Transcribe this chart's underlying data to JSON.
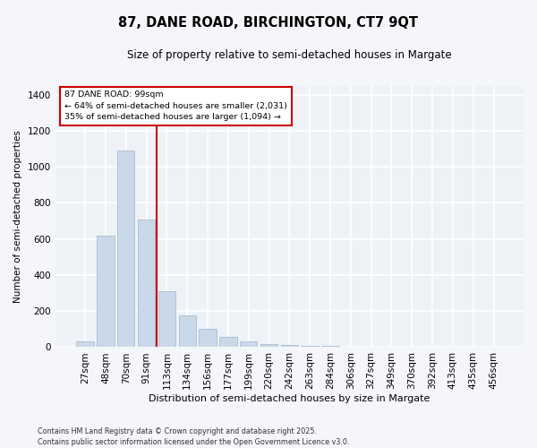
{
  "title": "87, DANE ROAD, BIRCHINGTON, CT7 9QT",
  "subtitle": "Size of property relative to semi-detached houses in Margate",
  "xlabel": "Distribution of semi-detached houses by size in Margate",
  "ylabel": "Number of semi-detached properties",
  "categories": [
    "27sqm",
    "48sqm",
    "70sqm",
    "91sqm",
    "113sqm",
    "134sqm",
    "156sqm",
    "177sqm",
    "199sqm",
    "220sqm",
    "242sqm",
    "263sqm",
    "284sqm",
    "306sqm",
    "327sqm",
    "349sqm",
    "370sqm",
    "392sqm",
    "413sqm",
    "435sqm",
    "456sqm"
  ],
  "values": [
    30,
    620,
    1090,
    710,
    310,
    175,
    100,
    55,
    30,
    15,
    10,
    5,
    5,
    0,
    0,
    0,
    0,
    0,
    0,
    0,
    0
  ],
  "bar_color": "#c9d9ea",
  "bar_edge_color": "#a8bdd0",
  "marker_index": 3,
  "marker_color": "#cc0000",
  "annotation_title": "87 DANE ROAD: 99sqm",
  "annotation_line1": "← 64% of semi-detached houses are smaller (2,031)",
  "annotation_line2": "35% of semi-detached houses are larger (1,094) →",
  "annotation_box_color": "#ffffff",
  "annotation_box_edge": "#cc0000",
  "ylim": [
    0,
    1450
  ],
  "yticks": [
    0,
    200,
    400,
    600,
    800,
    1000,
    1200,
    1400
  ],
  "bg_color": "#eef2f7",
  "grid_color": "#ffffff",
  "footer_line1": "Contains HM Land Registry data © Crown copyright and database right 2025.",
  "footer_line2": "Contains public sector information licensed under the Open Government Licence v3.0."
}
